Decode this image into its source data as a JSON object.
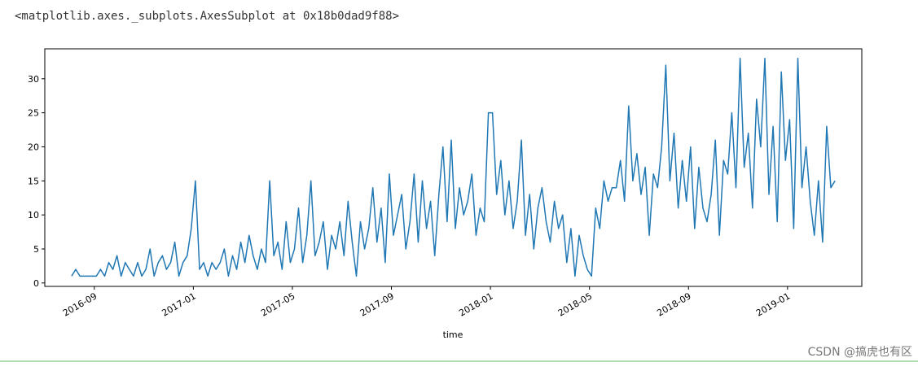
{
  "output_text": "<matplotlib.axes._subplots.AxesSubplot at 0x18b0dad9f88>",
  "watermark": "CSDN @搞虎也有区",
  "chart_data": {
    "type": "line",
    "xlabel": "time",
    "color": "#1f77b4",
    "x": [
      "2016-08",
      "2016-08",
      "2016-08",
      "2016-08",
      "2016-08",
      "2016-08",
      "2016-09",
      "2016-09",
      "2016-09",
      "2016-09",
      "2016-09",
      "2016-09",
      "2016-10",
      "2016-10",
      "2016-10",
      "2016-10",
      "2016-10",
      "2016-10",
      "2016-11",
      "2016-11",
      "2016-11",
      "2016-11",
      "2016-11",
      "2016-11",
      "2016-12",
      "2016-12",
      "2016-12",
      "2016-12",
      "2016-12",
      "2016-12",
      "2017-01",
      "2017-01",
      "2017-01",
      "2017-01",
      "2017-01",
      "2017-01",
      "2017-02",
      "2017-02",
      "2017-02",
      "2017-02",
      "2017-02",
      "2017-02",
      "2017-03",
      "2017-03",
      "2017-03",
      "2017-03",
      "2017-03",
      "2017-03",
      "2017-04",
      "2017-04",
      "2017-04",
      "2017-04",
      "2017-04",
      "2017-04",
      "2017-05",
      "2017-05",
      "2017-05",
      "2017-05",
      "2017-05",
      "2017-05",
      "2017-06",
      "2017-06",
      "2017-06",
      "2017-06",
      "2017-06",
      "2017-06",
      "2017-07",
      "2017-07",
      "2017-07",
      "2017-07",
      "2017-07",
      "2017-07",
      "2017-08",
      "2017-08",
      "2017-08",
      "2017-08",
      "2017-08",
      "2017-08",
      "2017-09",
      "2017-09",
      "2017-09",
      "2017-09",
      "2017-09",
      "2017-09",
      "2017-10",
      "2017-10",
      "2017-10",
      "2017-10",
      "2017-10",
      "2017-10",
      "2017-11",
      "2017-11",
      "2017-11",
      "2017-11",
      "2017-11",
      "2017-11",
      "2017-12",
      "2017-12",
      "2017-12",
      "2017-12",
      "2017-12",
      "2017-12",
      "2018-01",
      "2018-01",
      "2018-01",
      "2018-01",
      "2018-01",
      "2018-01",
      "2018-02",
      "2018-02",
      "2018-02",
      "2018-02",
      "2018-02",
      "2018-02",
      "2018-03",
      "2018-03",
      "2018-03",
      "2018-03",
      "2018-03",
      "2018-03",
      "2018-04",
      "2018-04",
      "2018-04",
      "2018-04",
      "2018-04",
      "2018-04",
      "2018-05",
      "2018-05",
      "2018-05",
      "2018-05",
      "2018-05",
      "2018-05",
      "2018-06",
      "2018-06",
      "2018-06",
      "2018-06",
      "2018-06",
      "2018-06",
      "2018-07",
      "2018-07",
      "2018-07",
      "2018-07",
      "2018-07",
      "2018-07",
      "2018-08",
      "2018-08",
      "2018-08",
      "2018-08",
      "2018-08",
      "2018-08",
      "2018-09",
      "2018-09",
      "2018-09",
      "2018-09",
      "2018-09",
      "2018-09",
      "2018-10",
      "2018-10",
      "2018-10",
      "2018-10",
      "2018-10",
      "2018-10",
      "2018-11",
      "2018-11",
      "2018-11",
      "2018-11",
      "2018-11",
      "2018-11",
      "2018-12",
      "2018-12",
      "2018-12",
      "2018-12",
      "2018-12",
      "2018-12",
      "2019-01",
      "2019-01",
      "2019-01",
      "2019-01",
      "2019-01",
      "2019-01",
      "2019-02",
      "2019-02",
      "2019-02",
      "2019-02",
      "2019-02",
      "2019-02"
    ],
    "values": [
      1,
      2,
      1,
      1,
      1,
      1,
      1,
      2,
      1,
      3,
      2,
      4,
      1,
      3,
      2,
      1,
      3,
      1,
      2,
      5,
      1,
      3,
      4,
      2,
      3,
      6,
      1,
      3,
      4,
      8,
      15,
      2,
      3,
      1,
      3,
      2,
      3,
      5,
      1,
      4,
      2,
      6,
      3,
      7,
      4,
      2,
      5,
      3,
      15,
      4,
      6,
      2,
      9,
      3,
      5,
      11,
      3,
      7,
      15,
      4,
      6,
      9,
      2,
      7,
      5,
      9,
      4,
      12,
      6,
      1,
      9,
      5,
      8,
      14,
      6,
      11,
      3,
      16,
      7,
      10,
      13,
      5,
      9,
      16,
      6,
      15,
      8,
      12,
      4,
      13,
      20,
      9,
      21,
      8,
      14,
      10,
      12,
      16,
      7,
      11,
      9,
      25,
      25,
      13,
      18,
      10,
      15,
      8,
      12,
      21,
      7,
      13,
      5,
      11,
      14,
      9,
      6,
      12,
      8,
      10,
      3,
      8,
      1,
      7,
      4,
      2,
      1,
      11,
      8,
      15,
      12,
      14,
      14,
      18,
      12,
      26,
      15,
      19,
      13,
      17,
      7,
      16,
      14,
      20,
      32,
      15,
      22,
      11,
      18,
      12,
      20,
      8,
      17,
      11,
      9,
      13,
      21,
      7,
      18,
      16,
      25,
      14,
      33,
      17,
      22,
      11,
      27,
      20,
      33,
      13,
      23,
      9,
      31,
      18,
      24,
      8,
      33,
      14,
      20,
      12,
      7,
      15,
      6,
      23,
      14,
      15
    ],
    "xlim": [
      "2016-07",
      "2019-04"
    ],
    "xticks": [
      "2016-09",
      "2017-01",
      "2017-05",
      "2017-09",
      "2018-01",
      "2018-05",
      "2018-09",
      "2019-01"
    ],
    "ylim": [
      -0.5,
      34.4
    ],
    "yticks": [
      0,
      5,
      10,
      15,
      20,
      25,
      30
    ]
  }
}
